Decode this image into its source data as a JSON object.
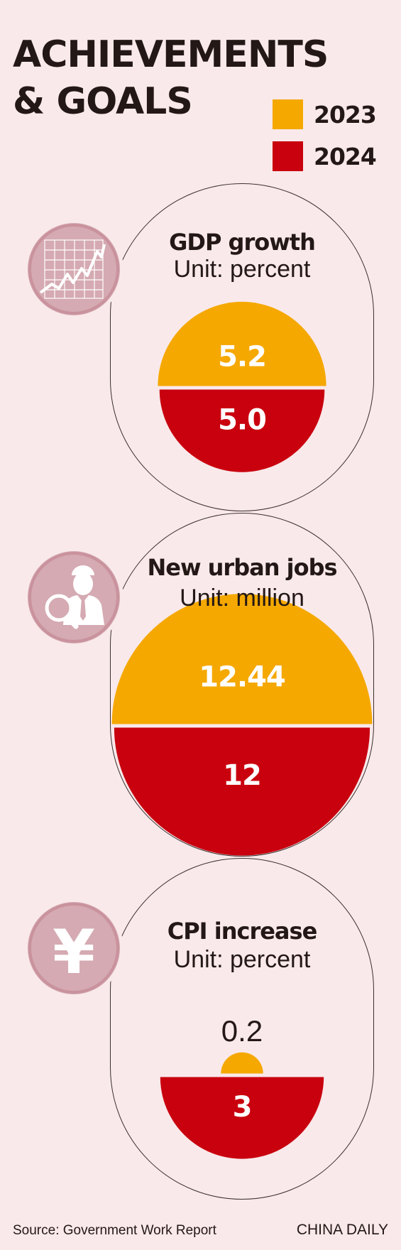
{
  "title_line1": "ACHIEVEMENTS",
  "title_line2": "& GOALS",
  "legend": [
    {
      "label": "2023",
      "color": "#f5a800"
    },
    {
      "label": "2024",
      "color": "#c9000e"
    }
  ],
  "chart_data": [
    {
      "type": "semicircle-comparison",
      "title": "GDP growth",
      "unit": "Unit: percent",
      "series": [
        {
          "name": "2023",
          "value": 5.2,
          "label": "5.2"
        },
        {
          "name": "2024",
          "value": 5.0,
          "label": "5.0"
        }
      ],
      "icon": "line-chart-icon"
    },
    {
      "type": "semicircle-comparison",
      "title": "New urban jobs",
      "unit": "Unit: million",
      "series": [
        {
          "name": "2023",
          "value": 12.44,
          "label": "12.44"
        },
        {
          "name": "2024",
          "value": 12,
          "label": "12"
        }
      ],
      "icon": "job-search-person-icon"
    },
    {
      "type": "semicircle-comparison",
      "title": "CPI increase",
      "unit": "Unit: percent",
      "series": [
        {
          "name": "2023",
          "value": 0.2,
          "label": "0.2"
        },
        {
          "name": "2024",
          "value": 3,
          "label": "3"
        }
      ],
      "icon": "yuan-icon"
    }
  ],
  "footer": {
    "source": "Source: Government Work Report",
    "brand": "CHINA DAILY"
  }
}
